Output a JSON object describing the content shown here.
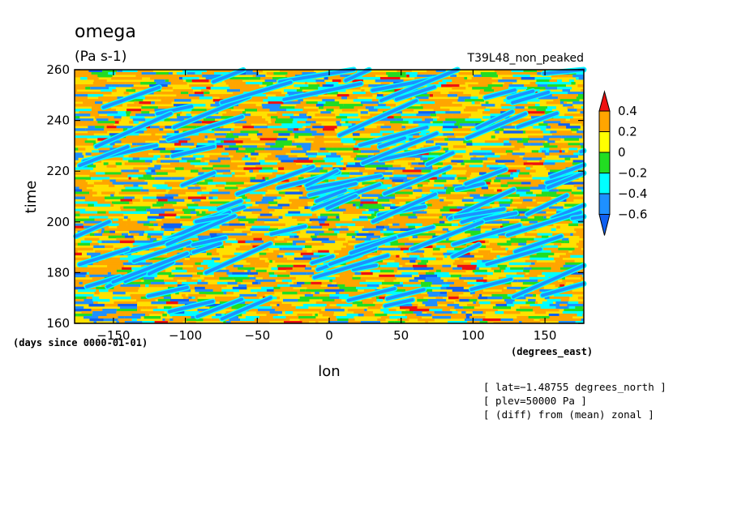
{
  "chart_data": {
    "type": "heatmap",
    "title": "omega",
    "units": "(Pa s-1)",
    "case_label": "T39L48_non_peaked",
    "xlabel": "lon",
    "ylabel": "time",
    "x_units": "(degrees_east)",
    "y_units": "(days since 0000-01-01)",
    "xlim": [
      -177,
      177
    ],
    "ylim": [
      160,
      260
    ],
    "x_ticks": [
      -150,
      -100,
      -50,
      0,
      50,
      100,
      150
    ],
    "x_tick_labels": [
      "−150",
      "−100",
      "−50",
      "0",
      "50",
      "100",
      "150"
    ],
    "y_ticks": [
      160,
      180,
      200,
      220,
      240,
      260
    ],
    "y_tick_labels": [
      "160",
      "180",
      "200",
      "220",
      "240",
      "260"
    ],
    "colorbar": {
      "boundaries": [
        0.4,
        0.2,
        0,
        -0.2,
        -0.4,
        -0.6
      ],
      "labels": [
        "0.4",
        "0.2",
        "0",
        "−0.2",
        "−0.4",
        "−0.6"
      ],
      "colors_top_to_bottom": [
        "#ee1111",
        "#ffa500",
        "#ffff00",
        "#22dd22",
        "#00ffff",
        "#1e90ff",
        "#1060f0"
      ]
    },
    "notes": [
      "[ lat=−1.48755 degrees_north ]",
      "[ plev=50000 Pa ]",
      "[ (diff) from (mean) zonal ]"
    ]
  }
}
